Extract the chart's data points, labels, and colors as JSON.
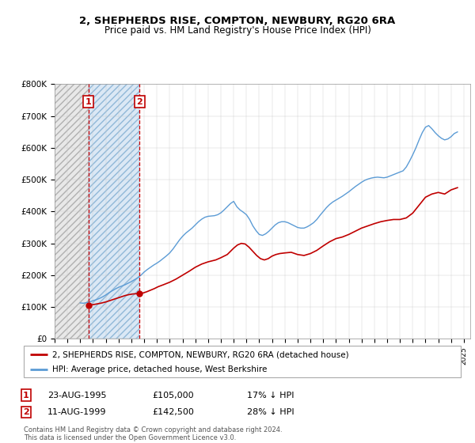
{
  "title1": "2, SHEPHERDS RISE, COMPTON, NEWBURY, RG20 6RA",
  "title2": "Price paid vs. HM Land Registry's House Price Index (HPI)",
  "sale1_x": 1995.64,
  "sale2_x": 1999.64,
  "sale1_price": 105000,
  "sale2_price": 142500,
  "legend_line1": "2, SHEPHERDS RISE, COMPTON, NEWBURY, RG20 6RA (detached house)",
  "legend_line2": "HPI: Average price, detached house, West Berkshire",
  "table_row1": [
    "1",
    "23-AUG-1995",
    "£105,000",
    "17% ↓ HPI"
  ],
  "table_row2": [
    "2",
    "11-AUG-1999",
    "£142,500",
    "28% ↓ HPI"
  ],
  "footnote": "Contains HM Land Registry data © Crown copyright and database right 2024.\nThis data is licensed under the Open Government Licence v3.0.",
  "hpi_color": "#5b9bd5",
  "price_color": "#c00000",
  "ylim": [
    0,
    800000
  ],
  "xlim": [
    1993.0,
    2025.5
  ],
  "ytick_vals": [
    0,
    100000,
    200000,
    300000,
    400000,
    500000,
    600000,
    700000,
    800000
  ],
  "ytick_labels": [
    "£0",
    "£100K",
    "£200K",
    "£300K",
    "£400K",
    "£500K",
    "£600K",
    "£700K",
    "£800K"
  ],
  "hpi_years": [
    1995.0,
    1995.25,
    1995.5,
    1995.75,
    1996.0,
    1996.25,
    1996.5,
    1996.75,
    1997.0,
    1997.25,
    1997.5,
    1997.75,
    1998.0,
    1998.25,
    1998.5,
    1998.75,
    1999.0,
    1999.25,
    1999.5,
    1999.75,
    2000.0,
    2000.25,
    2000.5,
    2000.75,
    2001.0,
    2001.25,
    2001.5,
    2001.75,
    2002.0,
    2002.25,
    2002.5,
    2002.75,
    2003.0,
    2003.25,
    2003.5,
    2003.75,
    2004.0,
    2004.25,
    2004.5,
    2004.75,
    2005.0,
    2005.25,
    2005.5,
    2005.75,
    2006.0,
    2006.25,
    2006.5,
    2006.75,
    2007.0,
    2007.25,
    2007.5,
    2007.75,
    2008.0,
    2008.25,
    2008.5,
    2008.75,
    2009.0,
    2009.25,
    2009.5,
    2009.75,
    2010.0,
    2010.25,
    2010.5,
    2010.75,
    2011.0,
    2011.25,
    2011.5,
    2011.75,
    2012.0,
    2012.25,
    2012.5,
    2012.75,
    2013.0,
    2013.25,
    2013.5,
    2013.75,
    2014.0,
    2014.25,
    2014.5,
    2014.75,
    2015.0,
    2015.25,
    2015.5,
    2015.75,
    2016.0,
    2016.25,
    2016.5,
    2016.75,
    2017.0,
    2017.25,
    2017.5,
    2017.75,
    2018.0,
    2018.25,
    2018.5,
    2018.75,
    2019.0,
    2019.25,
    2019.5,
    2019.75,
    2020.0,
    2020.25,
    2020.5,
    2020.75,
    2021.0,
    2021.25,
    2021.5,
    2021.75,
    2022.0,
    2022.25,
    2022.5,
    2022.75,
    2023.0,
    2023.25,
    2023.5,
    2023.75,
    2024.0,
    2024.25,
    2024.5
  ],
  "hpi_values": [
    113000,
    112000,
    114000,
    116000,
    120000,
    123000,
    127000,
    132000,
    138000,
    145000,
    151000,
    157000,
    162000,
    166000,
    170000,
    175000,
    180000,
    186000,
    192000,
    200000,
    210000,
    218000,
    225000,
    232000,
    238000,
    245000,
    253000,
    261000,
    270000,
    282000,
    296000,
    310000,
    322000,
    332000,
    340000,
    348000,
    358000,
    368000,
    376000,
    382000,
    385000,
    386000,
    387000,
    390000,
    396000,
    405000,
    415000,
    425000,
    432000,
    415000,
    405000,
    398000,
    390000,
    375000,
    355000,
    340000,
    328000,
    325000,
    330000,
    338000,
    348000,
    358000,
    365000,
    368000,
    368000,
    365000,
    360000,
    355000,
    350000,
    348000,
    348000,
    352000,
    358000,
    365000,
    375000,
    388000,
    400000,
    412000,
    422000,
    430000,
    436000,
    442000,
    448000,
    455000,
    462000,
    470000,
    478000,
    485000,
    492000,
    498000,
    502000,
    505000,
    507000,
    508000,
    507000,
    506000,
    508000,
    512000,
    516000,
    520000,
    524000,
    528000,
    540000,
    558000,
    578000,
    600000,
    625000,
    648000,
    665000,
    670000,
    660000,
    648000,
    638000,
    630000,
    625000,
    628000,
    635000,
    645000,
    650000
  ],
  "price_years": [
    1995.64,
    1995.9,
    1996.2,
    1996.6,
    1997.0,
    1997.3,
    1997.6,
    1997.9,
    1998.2,
    1998.5,
    1998.8,
    1999.1,
    1999.4,
    1999.64,
    1999.9,
    2000.2,
    2000.5,
    2000.8,
    2001.1,
    2001.5,
    2002.0,
    2002.5,
    2003.0,
    2003.5,
    2004.0,
    2004.5,
    2005.0,
    2005.3,
    2005.6,
    2006.0,
    2006.5,
    2007.0,
    2007.3,
    2007.6,
    2007.9,
    2008.2,
    2008.5,
    2008.8,
    2009.1,
    2009.4,
    2009.7,
    2010.0,
    2010.3,
    2010.6,
    2011.0,
    2011.5,
    2012.0,
    2012.5,
    2013.0,
    2013.5,
    2014.0,
    2014.5,
    2015.0,
    2015.5,
    2016.0,
    2016.5,
    2017.0,
    2017.5,
    2018.0,
    2018.5,
    2019.0,
    2019.5,
    2020.0,
    2020.5,
    2021.0,
    2021.5,
    2022.0,
    2022.5,
    2023.0,
    2023.5,
    2024.0,
    2024.5
  ],
  "price_values": [
    105000,
    107000,
    109000,
    112000,
    116000,
    120000,
    124000,
    128000,
    132000,
    136000,
    139000,
    141000,
    142000,
    142500,
    144000,
    148000,
    153000,
    158000,
    164000,
    170000,
    178000,
    188000,
    200000,
    212000,
    225000,
    235000,
    242000,
    245000,
    248000,
    255000,
    265000,
    285000,
    295000,
    300000,
    298000,
    288000,
    275000,
    262000,
    252000,
    248000,
    252000,
    260000,
    265000,
    268000,
    270000,
    272000,
    265000,
    262000,
    268000,
    278000,
    292000,
    305000,
    315000,
    320000,
    328000,
    338000,
    348000,
    355000,
    362000,
    368000,
    372000,
    375000,
    375000,
    380000,
    395000,
    420000,
    445000,
    455000,
    460000,
    455000,
    468000,
    475000
  ]
}
